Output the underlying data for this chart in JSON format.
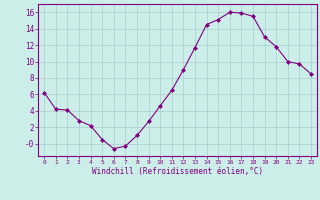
{
  "x": [
    0,
    1,
    2,
    3,
    4,
    5,
    6,
    7,
    8,
    9,
    10,
    11,
    12,
    13,
    14,
    15,
    16,
    17,
    18,
    19,
    20,
    21,
    22,
    23
  ],
  "y": [
    6.2,
    4.2,
    4.1,
    2.8,
    2.2,
    0.5,
    -0.6,
    -0.3,
    1.0,
    2.7,
    4.6,
    6.5,
    9.0,
    11.7,
    14.5,
    15.1,
    16.0,
    15.9,
    15.5,
    13.0,
    11.8,
    10.0,
    9.7,
    8.5
  ],
  "line_color": "#800080",
  "marker": "D",
  "marker_size": 2,
  "bg_color": "#cceee8",
  "grid_color": "#aacccc",
  "xlabel": "Windchill (Refroidissement éolien,°C)",
  "ylabel": "",
  "title": "",
  "xlim": [
    -0.5,
    23.5
  ],
  "ylim": [
    -1.5,
    17
  ],
  "yticks": [
    0,
    2,
    4,
    6,
    8,
    10,
    12,
    14,
    16
  ],
  "ytick_labels": [
    "-0",
    "2",
    "4",
    "6",
    "8",
    "10",
    "12",
    "14",
    "16"
  ],
  "xtick_labels": [
    "0",
    "1",
    "2",
    "3",
    "4",
    "5",
    "6",
    "7",
    "8",
    "9",
    "10",
    "11",
    "12",
    "13",
    "14",
    "15",
    "16",
    "17",
    "18",
    "19",
    "20",
    "21",
    "22",
    "23"
  ],
  "spine_color": "#800080",
  "font_color": "#800080"
}
